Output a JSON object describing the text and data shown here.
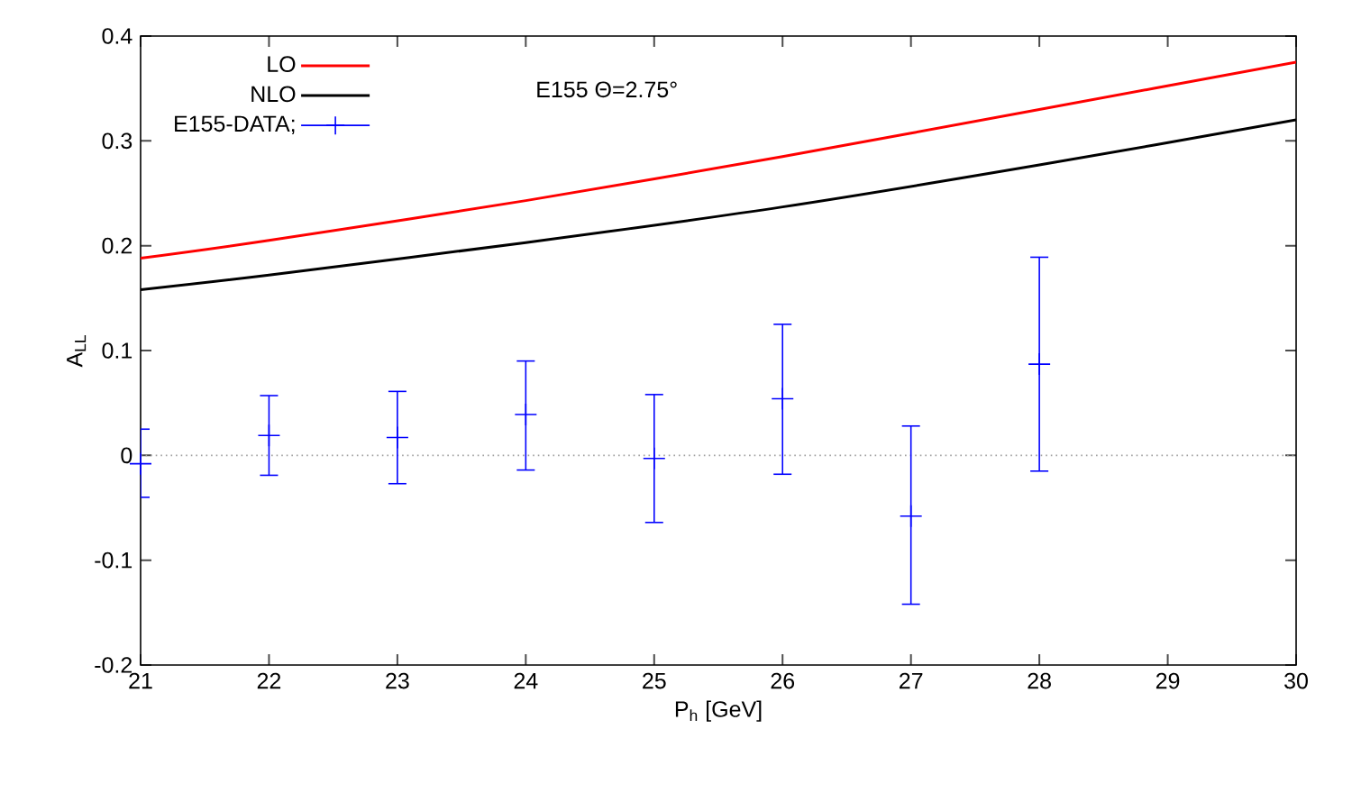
{
  "chart_data": {
    "type": "line",
    "xlabel": "P$_{h}$ [GeV]",
    "ylabel": "A$_{LL}$",
    "annotations": [
      "E155 Θ=2.75°"
    ],
    "xlim": [
      21,
      30
    ],
    "ylim": [
      -0.2,
      0.4
    ],
    "xticks": [
      21,
      22,
      23,
      24,
      25,
      26,
      27,
      28,
      29,
      30
    ],
    "yticks": [
      -0.2,
      -0.1,
      0,
      0.1,
      0.2,
      0.3,
      0.4
    ],
    "legend": "top left",
    "grid": false,
    "ref_lines": [
      {
        "axis": "y",
        "value": 0,
        "color": "#a0a0a0",
        "line_style": "dotted"
      }
    ],
    "series": [
      {
        "name": "LO",
        "type": "line",
        "color": "#ff0000",
        "x": [
          21,
          22,
          24,
          26,
          28,
          30
        ],
        "values": [
          0.188,
          0.205,
          0.243,
          0.285,
          0.33,
          0.375
        ]
      },
      {
        "name": "NLO",
        "type": "line",
        "color": "#000000",
        "x": [
          21,
          22,
          24,
          26,
          28,
          30
        ],
        "values": [
          0.158,
          0.172,
          0.203,
          0.237,
          0.277,
          0.32
        ]
      },
      {
        "name": "E155-DATA;",
        "type": "scatter",
        "marker": "cross",
        "color": "#0000ff",
        "x": [
          21,
          22,
          23,
          24,
          25,
          26,
          27,
          28
        ],
        "values": [
          -0.008,
          0.019,
          0.017,
          0.039,
          -0.003,
          0.054,
          -0.058,
          0.087
        ],
        "errors": [
          [
            -0.04,
            0.025
          ],
          [
            -0.019,
            0.057
          ],
          [
            -0.027,
            0.061
          ],
          [
            -0.014,
            0.09
          ],
          [
            -0.064,
            0.058
          ],
          [
            -0.018,
            0.125
          ],
          [
            -0.142,
            0.028
          ],
          [
            -0.015,
            0.189
          ]
        ]
      }
    ]
  }
}
